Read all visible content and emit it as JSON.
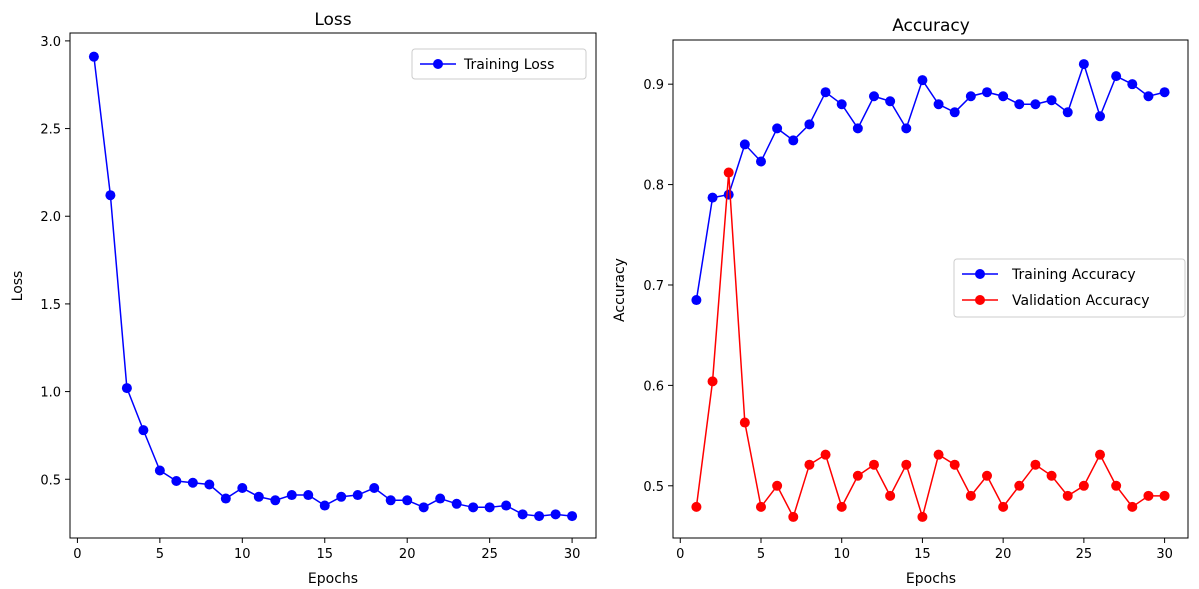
{
  "chart_data": [
    {
      "type": "line",
      "title": "Loss",
      "xlabel": "Epochs",
      "ylabel": "Loss",
      "xlim": [
        -0.45,
        31.45
      ],
      "ylim": [
        0.165,
        3.045
      ],
      "xticks": [
        "0",
        "5",
        "10",
        "15",
        "20",
        "25",
        "30"
      ],
      "yticks": [
        "0.5",
        "1.0",
        "1.5",
        "2.0",
        "2.5",
        "3.0"
      ],
      "legend": "upper right",
      "grid": false,
      "x": [
        1,
        2,
        3,
        4,
        5,
        6,
        7,
        8,
        9,
        10,
        11,
        12,
        13,
        14,
        15,
        16,
        17,
        18,
        19,
        20,
        21,
        22,
        23,
        24,
        25,
        26,
        27,
        28,
        29,
        30
      ],
      "series": [
        {
          "name": "Training Loss",
          "color": "#0000ff",
          "marker": "circle",
          "values": [
            2.91,
            2.12,
            1.02,
            0.78,
            0.55,
            0.49,
            0.48,
            0.47,
            0.39,
            0.45,
            0.4,
            0.38,
            0.41,
            0.41,
            0.35,
            0.4,
            0.41,
            0.45,
            0.38,
            0.38,
            0.34,
            0.39,
            0.36,
            0.34,
            0.34,
            0.35,
            0.3,
            0.29,
            0.3,
            0.29
          ]
        }
      ]
    },
    {
      "type": "line",
      "title": "Accuracy",
      "xlabel": "Epochs",
      "ylabel": "Accuracy",
      "xlim": [
        -0.45,
        31.45
      ],
      "ylim": [
        0.448,
        0.944
      ],
      "xticks": [
        "0",
        "5",
        "10",
        "15",
        "20",
        "25",
        "30"
      ],
      "yticks": [
        "0.5",
        "0.6",
        "0.7",
        "0.8",
        "0.9"
      ],
      "legend": "center right",
      "grid": false,
      "x": [
        1,
        2,
        3,
        4,
        5,
        6,
        7,
        8,
        9,
        10,
        11,
        12,
        13,
        14,
        15,
        16,
        17,
        18,
        19,
        20,
        21,
        22,
        23,
        24,
        25,
        26,
        27,
        28,
        29,
        30
      ],
      "series": [
        {
          "name": "Training Accuracy",
          "color": "#0000ff",
          "marker": "circle",
          "values": [
            0.685,
            0.787,
            0.79,
            0.84,
            0.823,
            0.856,
            0.844,
            0.86,
            0.892,
            0.88,
            0.856,
            0.888,
            0.883,
            0.856,
            0.904,
            0.88,
            0.872,
            0.888,
            0.892,
            0.888,
            0.88,
            0.88,
            0.884,
            0.872,
            0.92,
            0.868,
            0.908,
            0.9,
            0.888,
            0.892
          ]
        },
        {
          "name": "Validation Accuracy",
          "color": "#ff0000",
          "marker": "circle",
          "values": [
            0.479,
            0.604,
            0.812,
            0.563,
            0.479,
            0.5,
            0.469,
            0.521,
            0.531,
            0.479,
            0.51,
            0.521,
            0.49,
            0.521,
            0.469,
            0.531,
            0.521,
            0.49,
            0.51,
            0.479,
            0.5,
            0.521,
            0.51,
            0.49,
            0.5,
            0.531,
            0.5,
            0.479,
            0.49,
            0.49
          ]
        }
      ]
    }
  ]
}
